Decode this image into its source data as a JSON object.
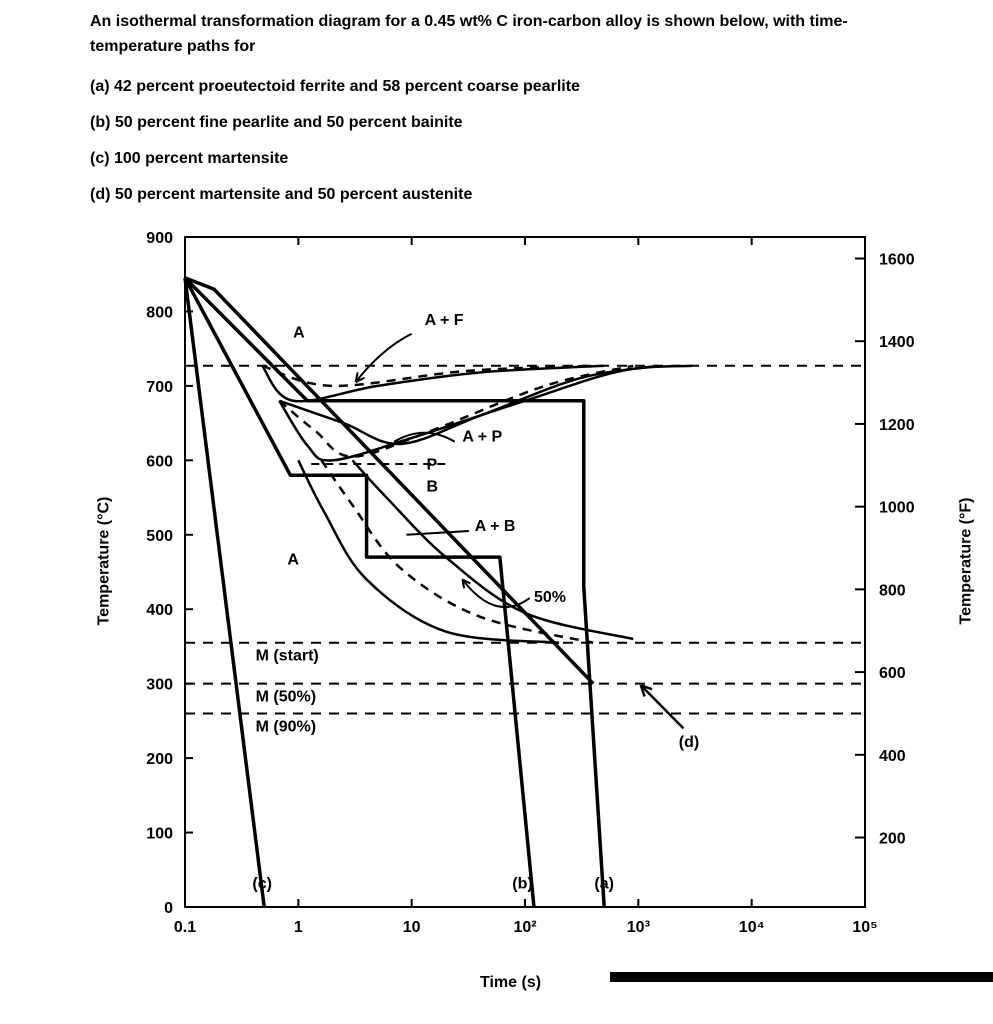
{
  "prompt": {
    "intro": "An isothermal transformation diagram for a 0.45 wt% C iron-carbon alloy is shown below, with time-temperature paths for",
    "a": "(a) 42 percent proeutectoid ferrite and 58 percent coarse pearlite",
    "b": "(b) 50 percent fine pearlite and 50 percent bainite",
    "c": "(c) 100 percent martensite",
    "d": "(d) 50 percent martensite and 50 percent austenite"
  },
  "chart": {
    "type": "line",
    "xlabel": "Time (s)",
    "ylabel_left": "Temperature (°C)",
    "ylabel_right": "Temperature (°F)",
    "x_scale": "log",
    "x_ticks": [
      "0.1",
      "1",
      "10",
      "10²",
      "10³",
      "10⁴",
      "10⁵"
    ],
    "x_tick_vals": [
      0.1,
      1,
      10,
      100,
      1000,
      10000,
      100000
    ],
    "yC_min": 0,
    "yC_max": 900,
    "yC_step": 100,
    "yF_ticks": [
      200,
      400,
      600,
      800,
      1000,
      1200,
      1400,
      1600
    ],
    "eutectoid_tempC": 727,
    "martensite": {
      "start": 355,
      "fifty": 300,
      "ninety": 260
    },
    "region_labels": {
      "A_upper": "A",
      "AF": "A + F",
      "AP": "A + P",
      "P": "P",
      "B": "B",
      "AB": "A + B",
      "A_lower": "A",
      "fifty": "50%",
      "Mstart": "M (start)",
      "M50": "M (50%)",
      "M90": "M (90%)"
    },
    "path_labels": {
      "a": "(a)",
      "b": "(b)",
      "c": "(c)",
      "d": "(d)"
    },
    "paths": {
      "c": [
        [
          0.1,
          845
        ],
        [
          0.5,
          0
        ]
      ],
      "b": [
        [
          0.1,
          845
        ],
        [
          0.85,
          580
        ],
        [
          4,
          580
        ],
        [
          4,
          470
        ],
        [
          60,
          470
        ],
        [
          120,
          0
        ]
      ],
      "a": [
        [
          0.1,
          845
        ],
        [
          1.2,
          680
        ],
        [
          330,
          680
        ],
        [
          330,
          430
        ],
        [
          500,
          0
        ]
      ],
      "d": [
        [
          0.1,
          845
        ],
        [
          0.18,
          830
        ],
        [
          400,
          300
        ]
      ]
    },
    "d_arrow": [
      [
        2500,
        240
      ],
      [
        1050,
        298
      ]
    ],
    "curves": {
      "ferrite_start": [
        [
          0.48,
          727
        ],
        [
          0.9,
          680
        ],
        [
          5,
          700
        ],
        [
          40,
          718
        ],
        [
          500,
          727
        ]
      ],
      "ferrite_end": [
        [
          0.48,
          727
        ],
        [
          2,
          700
        ],
        [
          30,
          720
        ],
        [
          400,
          727
        ]
      ],
      "pearlite_start": [
        [
          0.68,
          680
        ],
        [
          1.2,
          620
        ],
        [
          2,
          600
        ],
        [
          10,
          630
        ],
        [
          100,
          680
        ],
        [
          700,
          720
        ],
        [
          3000,
          727
        ]
      ],
      "pearlite_50": [
        [
          0.68,
          680
        ],
        [
          1.4,
          640
        ],
        [
          3,
          605
        ],
        [
          15,
          640
        ],
        [
          150,
          700
        ],
        [
          900,
          727
        ]
      ],
      "pearlite_end": [
        [
          0.68,
          680
        ],
        [
          2.5,
          650
        ],
        [
          8,
          622
        ],
        [
          40,
          660
        ],
        [
          300,
          710
        ],
        [
          1500,
          727
        ]
      ],
      "bainite_start": [
        [
          1.0,
          600
        ],
        [
          1.7,
          530
        ],
        [
          4,
          440
        ],
        [
          20,
          370
        ],
        [
          200,
          355
        ]
      ],
      "bainite_50": [
        [
          1.6,
          600
        ],
        [
          3,
          540
        ],
        [
          8,
          455
        ],
        [
          40,
          390
        ],
        [
          400,
          355
        ]
      ],
      "bainite_end": [
        [
          3,
          600
        ],
        [
          6,
          550
        ],
        [
          20,
          470
        ],
        [
          100,
          395
        ],
        [
          900,
          360
        ]
      ]
    },
    "colors": {
      "axis": "#000000",
      "curve": "#000000",
      "dash": "#000000",
      "path": "#000000",
      "bg": "#ffffff"
    },
    "line_widths": {
      "axis": 2,
      "curve": 2.5,
      "path": 3.5,
      "dash": 2
    }
  }
}
